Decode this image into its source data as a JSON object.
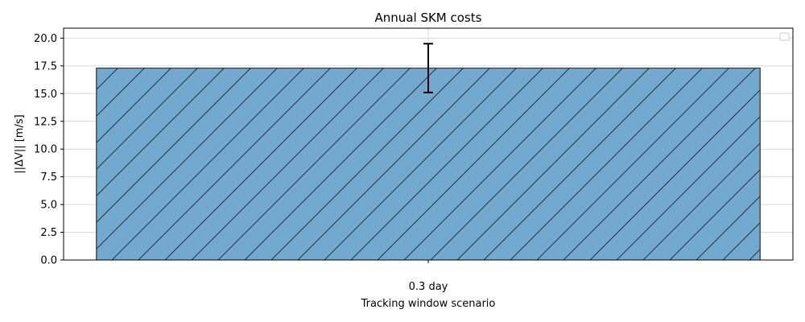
{
  "chart_data": {
    "type": "bar",
    "title": "Annual SKM costs",
    "xlabel": "Tracking window scenario",
    "ylabel": "||ΔV|| [m/s]",
    "categories": [
      "0.3 day"
    ],
    "values": [
      17.3
    ],
    "error": [
      2.2
    ],
    "ylim": [
      0,
      20.9
    ],
    "yticks": [
      0.0,
      2.5,
      5.0,
      7.5,
      10.0,
      12.5,
      15.0,
      17.5,
      20.0
    ],
    "ytick_labels": [
      "0.0",
      "2.5",
      "5.0",
      "7.5",
      "10.0",
      "12.5",
      "15.0",
      "17.5",
      "20.0"
    ],
    "grid": true,
    "legend": "top-right",
    "bar_color": "#74a9cf",
    "hatch": "forward-diagonal",
    "hatch_color": "#1f3347",
    "grid_color": "#d9d9d9",
    "error_color": "#000000"
  }
}
